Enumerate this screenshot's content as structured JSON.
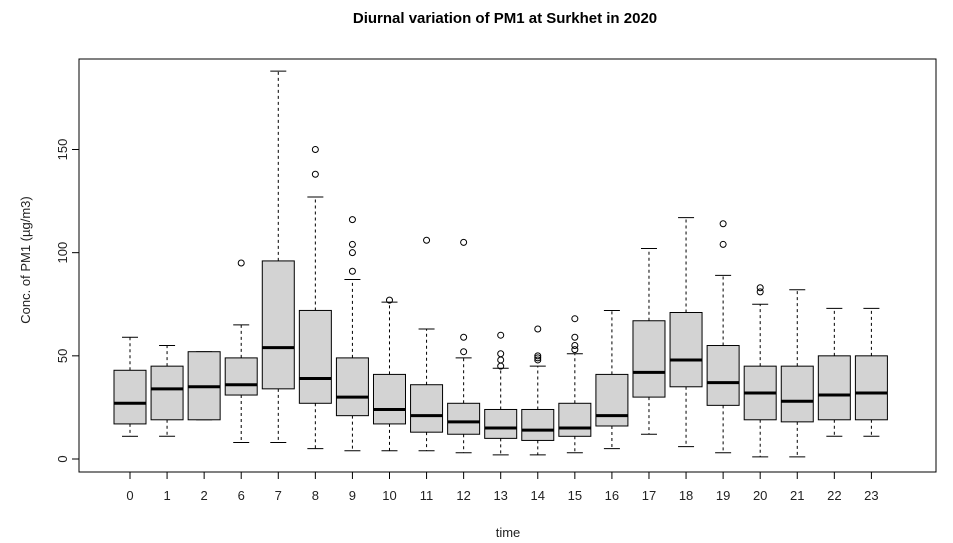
{
  "chart_data": {
    "type": "boxplot",
    "title": "Diurnal variation of PM1 at Surkhet in 2020",
    "xlabel": "time",
    "ylabel": "Conc. of PM1 (µg/m3)",
    "y_ticks": [
      "0",
      "50",
      "100",
      "150"
    ],
    "y_tick_values": [
      0,
      50,
      100,
      150
    ],
    "ylim": [
      -5,
      190
    ],
    "categories": [
      "0",
      "1",
      "2",
      "6",
      "7",
      "8",
      "9",
      "10",
      "11",
      "12",
      "13",
      "14",
      "15",
      "16",
      "17",
      "18",
      "19",
      "20",
      "21",
      "22",
      "23"
    ],
    "box_fill": "#d3d3d3",
    "boxes": [
      {
        "min": 11,
        "q1": 17,
        "median": 27,
        "q3": 43,
        "max": 59,
        "outliers": []
      },
      {
        "min": 11,
        "q1": 19,
        "median": 34,
        "q3": 45,
        "max": 55,
        "outliers": []
      },
      {
        "min": 19,
        "q1": 19,
        "median": 35,
        "q3": 52,
        "max": 52,
        "outliers": []
      },
      {
        "min": 8,
        "q1": 31,
        "median": 36,
        "q3": 49,
        "max": 65,
        "outliers": [
          95
        ]
      },
      {
        "min": 8,
        "q1": 34,
        "median": 54,
        "q3": 96,
        "max": 188,
        "outliers": []
      },
      {
        "min": 5,
        "q1": 27,
        "median": 39,
        "q3": 72,
        "max": 127,
        "outliers": [
          138,
          150
        ]
      },
      {
        "min": 4,
        "q1": 21,
        "median": 30,
        "q3": 49,
        "max": 87,
        "outliers": [
          91,
          100,
          104,
          116
        ]
      },
      {
        "min": 4,
        "q1": 17,
        "median": 24,
        "q3": 41,
        "max": 76,
        "outliers": [
          77
        ]
      },
      {
        "min": 4,
        "q1": 13,
        "median": 21,
        "q3": 36,
        "max": 63,
        "outliers": [
          106
        ]
      },
      {
        "min": 3,
        "q1": 12,
        "median": 18,
        "q3": 27,
        "max": 49,
        "outliers": [
          52,
          59,
          105
        ]
      },
      {
        "min": 2,
        "q1": 10,
        "median": 15,
        "q3": 24,
        "max": 44,
        "outliers": [
          45,
          48,
          51,
          60
        ]
      },
      {
        "min": 2,
        "q1": 9,
        "median": 14,
        "q3": 24,
        "max": 45,
        "outliers": [
          48,
          49,
          50,
          63
        ]
      },
      {
        "min": 3,
        "q1": 11,
        "median": 15,
        "q3": 27,
        "max": 51,
        "outliers": [
          53,
          55,
          59,
          68
        ]
      },
      {
        "min": 5,
        "q1": 16,
        "median": 21,
        "q3": 41,
        "max": 72,
        "outliers": []
      },
      {
        "min": 12,
        "q1": 30,
        "median": 42,
        "q3": 67,
        "max": 102,
        "outliers": []
      },
      {
        "min": 6,
        "q1": 35,
        "median": 48,
        "q3": 71,
        "max": 117,
        "outliers": []
      },
      {
        "min": 3,
        "q1": 26,
        "median": 37,
        "q3": 55,
        "max": 89,
        "outliers": [
          104,
          114
        ]
      },
      {
        "min": 1,
        "q1": 19,
        "median": 32,
        "q3": 45,
        "max": 75,
        "outliers": [
          81,
          83
        ]
      },
      {
        "min": 1,
        "q1": 18,
        "median": 28,
        "q3": 45,
        "max": 82,
        "outliers": []
      },
      {
        "min": 11,
        "q1": 19,
        "median": 31,
        "q3": 50,
        "max": 73,
        "outliers": []
      },
      {
        "min": 11,
        "q1": 19,
        "median": 32,
        "q3": 50,
        "max": 73,
        "outliers": []
      }
    ]
  }
}
